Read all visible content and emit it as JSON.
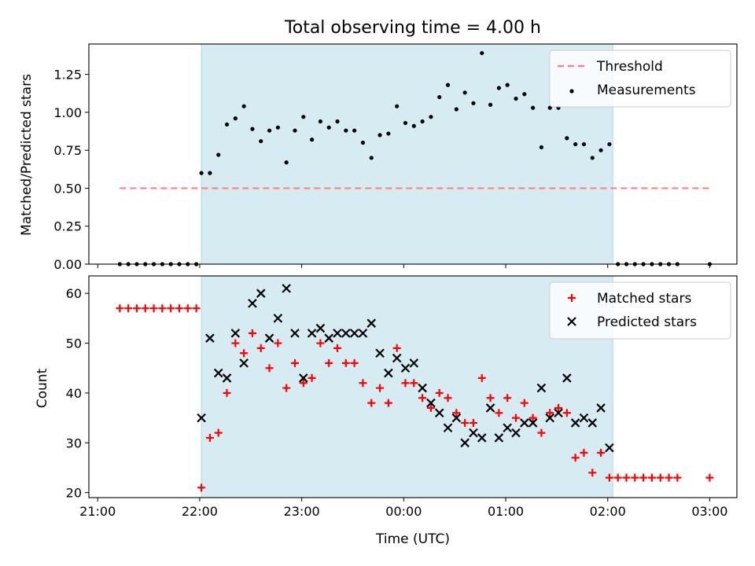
{
  "figure": {
    "title": "Total observing time = 4.00 h",
    "xlabel": "Time (UTC)",
    "colors": {
      "shade": "#add8e6",
      "threshold": "#ff7f7f",
      "matched": "#ff0000",
      "predicted": "#000000",
      "measurements": "#000000"
    }
  },
  "chart_data": [
    {
      "type": "scatter",
      "ylabel": "Matched/Predicted stars",
      "ylim": [
        0,
        1.45
      ],
      "yticks": [
        "0.00",
        "0.25",
        "0.50",
        "0.75",
        "1.00",
        "1.25"
      ],
      "xlim": [
        "21:00",
        "03:00"
      ],
      "shaded_interval": [
        "22:01",
        "02:03"
      ],
      "legend_position": "top-right",
      "threshold": {
        "name": "Threshold",
        "y": 0.5,
        "x_range": [
          "21:13",
          "03:00"
        ],
        "style": "dashed"
      },
      "series": [
        {
          "name": "Measurements",
          "marker": "dot",
          "x": [
            "21:13",
            "21:18",
            "21:23",
            "21:28",
            "21:33",
            "21:38",
            "21:43",
            "21:48",
            "21:53",
            "21:58",
            "22:01",
            "22:06",
            "22:11",
            "22:16",
            "22:21",
            "22:26",
            "22:31",
            "22:36",
            "22:41",
            "22:46",
            "22:51",
            "22:56",
            "23:01",
            "23:06",
            "23:11",
            "23:16",
            "23:21",
            "23:26",
            "23:31",
            "23:36",
            "23:41",
            "23:46",
            "23:51",
            "23:56",
            "00:01",
            "00:06",
            "00:11",
            "00:16",
            "00:21",
            "00:26",
            "00:31",
            "00:36",
            "00:41",
            "00:46",
            "00:51",
            "00:56",
            "01:01",
            "01:06",
            "01:11",
            "01:16",
            "01:21",
            "01:26",
            "01:31",
            "01:36",
            "01:41",
            "01:46",
            "01:51",
            "01:56",
            "02:01",
            "02:06",
            "02:11",
            "02:16",
            "02:21",
            "02:26",
            "02:31",
            "02:36",
            "02:41",
            "03:00"
          ],
          "y": [
            0,
            0,
            0,
            0,
            0,
            0,
            0,
            0,
            0,
            0,
            0.6,
            0.6,
            0.72,
            0.92,
            0.96,
            1.04,
            0.89,
            0.81,
            0.88,
            0.9,
            0.67,
            0.88,
            0.97,
            0.82,
            0.94,
            0.9,
            0.94,
            0.88,
            0.88,
            0.8,
            0.7,
            0.85,
            0.86,
            1.04,
            0.93,
            0.91,
            0.94,
            0.97,
            1.1,
            1.18,
            1.02,
            1.13,
            1.06,
            1.39,
            1.05,
            1.16,
            1.18,
            1.09,
            1.12,
            1.03,
            0.77,
            1.03,
            1.03,
            0.83,
            0.79,
            0.79,
            0.7,
            0.75,
            0.79,
            0,
            0,
            0,
            0,
            0,
            0,
            0,
            0,
            0
          ]
        }
      ]
    },
    {
      "type": "scatter",
      "ylabel": "Count",
      "ylim": [
        19,
        63.5
      ],
      "yticks": [
        "20",
        "30",
        "40",
        "50",
        "60"
      ],
      "xlim": [
        "21:00",
        "03:00"
      ],
      "xticks": [
        "21:00",
        "22:00",
        "23:00",
        "00:00",
        "01:00",
        "02:00",
        "03:00"
      ],
      "shaded_interval": [
        "22:01",
        "02:03"
      ],
      "legend_position": "top-right",
      "series": [
        {
          "name": "Matched stars",
          "marker": "plus",
          "x": [
            "21:13",
            "21:18",
            "21:23",
            "21:28",
            "21:33",
            "21:38",
            "21:43",
            "21:48",
            "21:53",
            "21:58",
            "22:01",
            "22:06",
            "22:11",
            "22:16",
            "22:21",
            "22:26",
            "22:31",
            "22:36",
            "22:41",
            "22:46",
            "22:51",
            "22:56",
            "23:01",
            "23:06",
            "23:11",
            "23:16",
            "23:21",
            "23:26",
            "23:31",
            "23:36",
            "23:41",
            "23:46",
            "23:51",
            "23:56",
            "00:01",
            "00:06",
            "00:11",
            "00:16",
            "00:21",
            "00:26",
            "00:31",
            "00:36",
            "00:41",
            "00:46",
            "00:51",
            "00:56",
            "01:01",
            "01:06",
            "01:11",
            "01:16",
            "01:21",
            "01:26",
            "01:31",
            "01:36",
            "01:41",
            "01:46",
            "01:51",
            "01:56",
            "02:01",
            "02:06",
            "02:11",
            "02:16",
            "02:21",
            "02:26",
            "02:31",
            "02:36",
            "02:41",
            "03:00"
          ],
          "y": [
            57,
            57,
            57,
            57,
            57,
            57,
            57,
            57,
            57,
            57,
            21,
            31,
            32,
            40,
            50,
            48,
            52,
            49,
            45,
            50,
            41,
            46,
            42,
            43,
            50,
            46,
            49,
            46,
            46,
            42,
            38,
            41,
            38,
            49,
            42,
            42,
            39,
            37,
            40,
            39,
            36,
            34,
            34,
            43,
            39,
            36,
            39,
            35,
            38,
            35,
            32,
            36,
            37,
            36,
            27,
            28,
            24,
            28,
            23,
            23,
            23,
            23,
            23,
            23,
            23,
            23,
            23,
            23
          ]
        },
        {
          "name": "Predicted stars",
          "marker": "x",
          "x": [
            "22:01",
            "22:06",
            "22:11",
            "22:16",
            "22:21",
            "22:26",
            "22:31",
            "22:36",
            "22:41",
            "22:46",
            "22:51",
            "22:56",
            "23:01",
            "23:06",
            "23:11",
            "23:16",
            "23:21",
            "23:26",
            "23:31",
            "23:36",
            "23:41",
            "23:46",
            "23:51",
            "23:56",
            "00:01",
            "00:06",
            "00:11",
            "00:16",
            "00:21",
            "00:26",
            "00:31",
            "00:36",
            "00:41",
            "00:46",
            "00:51",
            "00:56",
            "01:01",
            "01:06",
            "01:11",
            "01:16",
            "01:21",
            "01:26",
            "01:31",
            "01:36",
            "01:41",
            "01:46",
            "01:51",
            "01:56",
            "02:01"
          ],
          "y": [
            35,
            51,
            44,
            43,
            52,
            46,
            58,
            60,
            51,
            55,
            61,
            52,
            43,
            52,
            53,
            51,
            52,
            52,
            52,
            52,
            54,
            48,
            44,
            47,
            45,
            46,
            41,
            38,
            36,
            33,
            35,
            30,
            32,
            31,
            37,
            31,
            33,
            32,
            34,
            34,
            41,
            35,
            36,
            43,
            34,
            35,
            34,
            37,
            29
          ]
        }
      ]
    }
  ]
}
